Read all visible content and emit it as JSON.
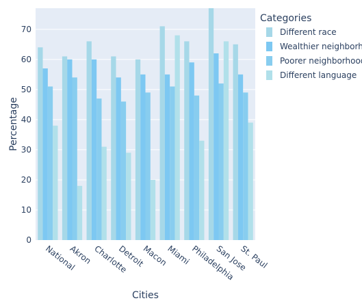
{
  "chart_data": {
    "type": "bar",
    "xlabel": "Cities",
    "ylabel": "Percentage",
    "ylim": [
      0,
      77
    ],
    "yticks": [
      0,
      10,
      20,
      30,
      40,
      50,
      60,
      70
    ],
    "grid": true,
    "legend": {
      "title": "Categories",
      "placement": "right"
    },
    "categories": [
      "National",
      "Akron",
      "Charlotte",
      "Detroit",
      "Macon",
      "Miami",
      "Philadelphia",
      "San Jose",
      "St. Paul"
    ],
    "series": [
      {
        "name": "Different race",
        "color": "#a6d8e8",
        "values": [
          64,
          61,
          66,
          61,
          60,
          71,
          66,
          79,
          65
        ]
      },
      {
        "name": "Wealthier neighborhood",
        "color": "#7dc8f2",
        "values": [
          57,
          60,
          60,
          54,
          55,
          55,
          59,
          62,
          55
        ]
      },
      {
        "name": "Poorer neighborhood",
        "color": "#88cdef",
        "values": [
          51,
          54,
          47,
          46,
          49,
          51,
          48,
          52,
          49
        ]
      },
      {
        "name": "Different language",
        "color": "#b1e0ea",
        "values": [
          38,
          18,
          31,
          29,
          20,
          68,
          33,
          66,
          39
        ]
      }
    ]
  }
}
